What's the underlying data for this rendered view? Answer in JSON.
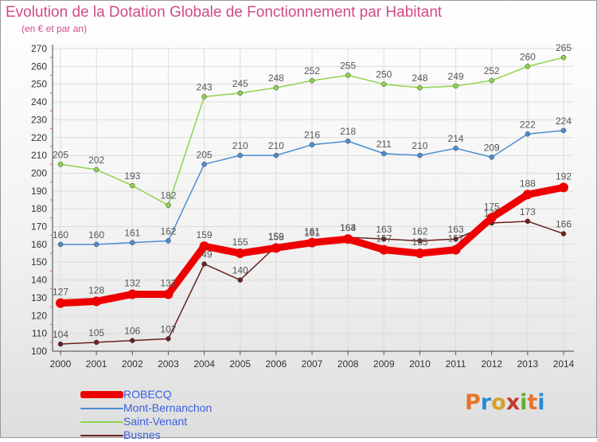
{
  "header": {
    "title": "Evolution de la Dotation Globale de Fonctionnement par Habitant",
    "subtitle": "(en € et par an)"
  },
  "logo": {
    "text": "Proxiti",
    "colors": [
      "#e8732a",
      "#2a8ad4",
      "#d4a12a",
      "#c23a2a",
      "#5fae2e",
      "#e8732a",
      "#2a8ad4"
    ]
  },
  "chart_data": {
    "type": "line",
    "x": [
      "2000",
      "2001",
      "2002",
      "2003",
      "2004",
      "2005",
      "2006",
      "2007",
      "2008",
      "2009",
      "2010",
      "2011",
      "2012",
      "2013",
      "2014"
    ],
    "ylim": [
      100,
      270
    ],
    "yticks": [
      100,
      110,
      120,
      130,
      140,
      150,
      160,
      170,
      180,
      190,
      200,
      210,
      220,
      230,
      240,
      250,
      260,
      270
    ],
    "grid": true,
    "legend_position": "bottom-left",
    "series": [
      {
        "name": "Saint-Venant",
        "color": "#8fd44a",
        "values": [
          205,
          202,
          193,
          182,
          243,
          245,
          248,
          252,
          255,
          250,
          248,
          249,
          252,
          260,
          265
        ]
      },
      {
        "name": "Mont-Bernanchon",
        "color": "#4a8ed4",
        "values": [
          160,
          160,
          161,
          162,
          205,
          210,
          210,
          216,
          218,
          211,
          210,
          214,
          209,
          222,
          224
        ]
      },
      {
        "name": "Busnes",
        "color": "#6b1f1f",
        "values": [
          104,
          105,
          106,
          107,
          149,
          140,
          159,
          161,
          164,
          163,
          162,
          163,
          172,
          173,
          166
        ]
      },
      {
        "name": "ROBECQ",
        "color": "#ee0000",
        "values": [
          127,
          128,
          132,
          132,
          159,
          155,
          158,
          161,
          163,
          157,
          155,
          157,
          175,
          188,
          192
        ]
      }
    ]
  }
}
